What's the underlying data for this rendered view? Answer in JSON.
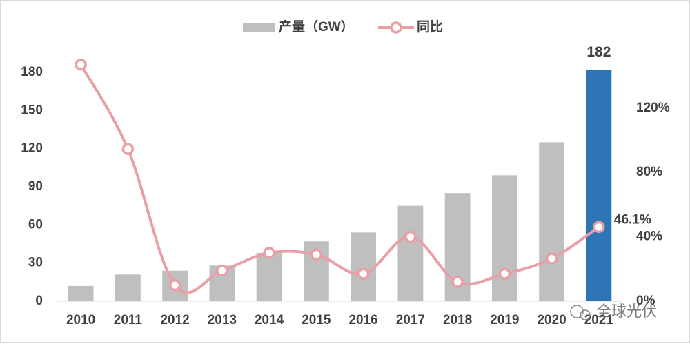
{
  "chart_data": {
    "type": "bar_line",
    "categories": [
      "2010",
      "2011",
      "2012",
      "2013",
      "2014",
      "2015",
      "2016",
      "2017",
      "2018",
      "2019",
      "2020",
      "2021"
    ],
    "series": [
      {
        "name": "产量（GW）",
        "type": "bar",
        "color": "#bfbfbf",
        "colors": [
          "#bfbfbf",
          "#bfbfbf",
          "#bfbfbf",
          "#bfbfbf",
          "#bfbfbf",
          "#bfbfbf",
          "#bfbfbf",
          "#bfbfbf",
          "#bfbfbf",
          "#bfbfbf",
          "#bfbfbf",
          "#2e75b6"
        ],
        "values": [
          12,
          21,
          24,
          28,
          38,
          47,
          54,
          75,
          85,
          99,
          125,
          182
        ],
        "value_labels": [
          null,
          null,
          null,
          null,
          null,
          null,
          null,
          null,
          null,
          null,
          null,
          "182"
        ]
      },
      {
        "name": "同比",
        "type": "line",
        "axis": "y2",
        "color": "#e8a0a6",
        "values": [
          147,
          94.5,
          10,
          19,
          30,
          29,
          17,
          40,
          12,
          17,
          26.5,
          46.1
        ],
        "value_labels": [
          null,
          null,
          null,
          null,
          null,
          null,
          null,
          null,
          null,
          null,
          null,
          "46.1%"
        ]
      }
    ],
    "ylim": [
      0,
      200
    ],
    "yticks": [
      0,
      30,
      60,
      90,
      120,
      150,
      180
    ],
    "y2lim": [
      0,
      158
    ],
    "y2ticks": [
      {
        "value": 0,
        "label": "0%"
      },
      {
        "value": 40,
        "label": "40%"
      },
      {
        "value": 80,
        "label": "80%"
      },
      {
        "value": 120,
        "label": "120%"
      }
    ],
    "legend": "top",
    "grid": false,
    "watermark": "全球光伏"
  }
}
